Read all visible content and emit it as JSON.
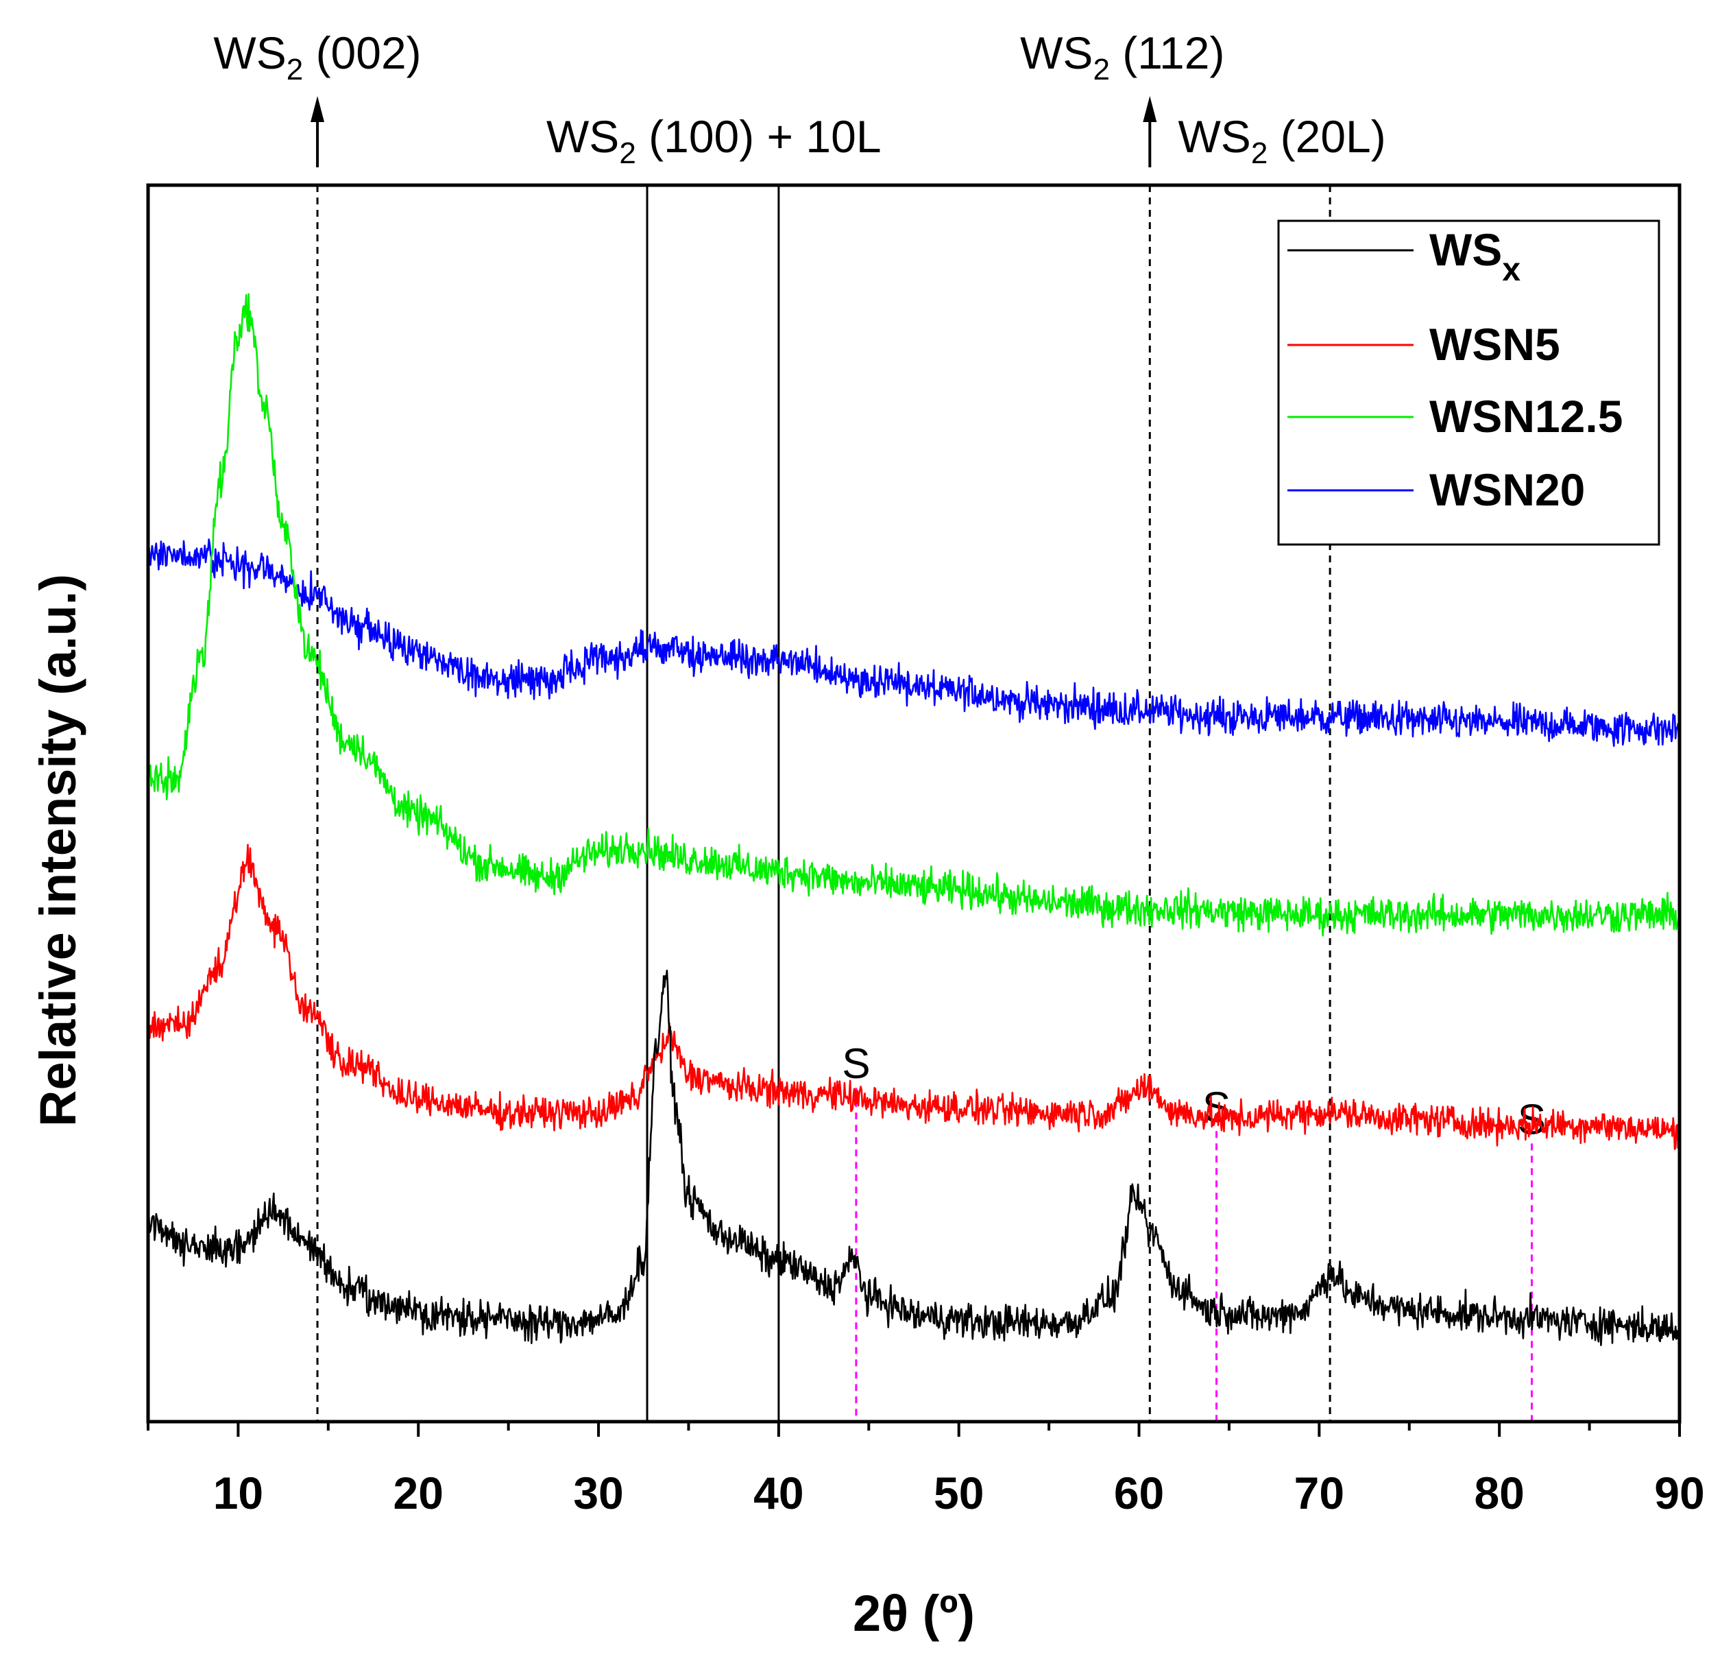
{
  "chart_data": {
    "type": "line",
    "title": "",
    "xlabel": "2θ (º)",
    "ylabel": "Relative intensity (a.u.)",
    "xlim": [
      5,
      90
    ],
    "ylim": [
      0,
      1
    ],
    "xticks": [
      10,
      20,
      30,
      40,
      50,
      60,
      70,
      80,
      90
    ],
    "yticks_shown": false,
    "legend": {
      "position": "top-right",
      "entries": [
        {
          "label": "WS",
          "subscript": "x",
          "color": "#000000"
        },
        {
          "label": "WSN5",
          "subscript": "",
          "color": "#ff0000"
        },
        {
          "label": "WSN12.5",
          "subscript": "",
          "color": "#00ee00"
        },
        {
          "label": "WSN20",
          "subscript": "",
          "color": "#0000ff"
        }
      ]
    },
    "series": [
      {
        "name": "WSx",
        "color": "#000000",
        "baseline": 0.085,
        "noise": 0.01,
        "points": [
          [
            5,
            0.16
          ],
          [
            8,
            0.14
          ],
          [
            10,
            0.14
          ],
          [
            12,
            0.17
          ],
          [
            14,
            0.14
          ],
          [
            16,
            0.11
          ],
          [
            18,
            0.095
          ],
          [
            22,
            0.085
          ],
          [
            28,
            0.08
          ],
          [
            31,
            0.085
          ],
          [
            32.5,
            0.13
          ],
          [
            33.2,
            0.3
          ],
          [
            33.7,
            0.36
          ],
          [
            34.2,
            0.26
          ],
          [
            35,
            0.18
          ],
          [
            37,
            0.15
          ],
          [
            40,
            0.13
          ],
          [
            43,
            0.11
          ],
          [
            44.2,
            0.13
          ],
          [
            45,
            0.1
          ],
          [
            48,
            0.085
          ],
          [
            52,
            0.08
          ],
          [
            56,
            0.08
          ],
          [
            58.5,
            0.1
          ],
          [
            59.8,
            0.18
          ],
          [
            60.8,
            0.15
          ],
          [
            62,
            0.11
          ],
          [
            64,
            0.09
          ],
          [
            67,
            0.085
          ],
          [
            69,
            0.09
          ],
          [
            70.7,
            0.12
          ],
          [
            72,
            0.1
          ],
          [
            75,
            0.09
          ],
          [
            80,
            0.085
          ],
          [
            85,
            0.08
          ],
          [
            90,
            0.075
          ]
        ]
      },
      {
        "name": "WSN5",
        "color": "#ff0000",
        "baseline": 0.22,
        "noise": 0.009,
        "points": [
          [
            5,
            0.32
          ],
          [
            7,
            0.32
          ],
          [
            9,
            0.37
          ],
          [
            10.5,
            0.45
          ],
          [
            12,
            0.4
          ],
          [
            14,
            0.33
          ],
          [
            16,
            0.29
          ],
          [
            20,
            0.26
          ],
          [
            25,
            0.25
          ],
          [
            30,
            0.25
          ],
          [
            32,
            0.26
          ],
          [
            33,
            0.29
          ],
          [
            34,
            0.31
          ],
          [
            35,
            0.28
          ],
          [
            38,
            0.27
          ],
          [
            42,
            0.265
          ],
          [
            48,
            0.255
          ],
          [
            55,
            0.25
          ],
          [
            58,
            0.25
          ],
          [
            60.5,
            0.27
          ],
          [
            62,
            0.25
          ],
          [
            65,
            0.245
          ],
          [
            70,
            0.25
          ],
          [
            75,
            0.245
          ],
          [
            80,
            0.24
          ],
          [
            85,
            0.24
          ],
          [
            90,
            0.235
          ]
        ]
      },
      {
        "name": "WSN12.5",
        "color": "#00ee00",
        "baseline": 0.39,
        "noise": 0.01,
        "points": [
          [
            5,
            0.52
          ],
          [
            6.5,
            0.52
          ],
          [
            8,
            0.62
          ],
          [
            9,
            0.76
          ],
          [
            10,
            0.88
          ],
          [
            10.5,
            0.9
          ],
          [
            11.5,
            0.82
          ],
          [
            12.5,
            0.72
          ],
          [
            14,
            0.62
          ],
          [
            16,
            0.55
          ],
          [
            20,
            0.49
          ],
          [
            24,
            0.45
          ],
          [
            27,
            0.44
          ],
          [
            30,
            0.46
          ],
          [
            32,
            0.465
          ],
          [
            35,
            0.455
          ],
          [
            40,
            0.445
          ],
          [
            45,
            0.435
          ],
          [
            50,
            0.43
          ],
          [
            55,
            0.42
          ],
          [
            60,
            0.415
          ],
          [
            70,
            0.41
          ],
          [
            80,
            0.41
          ],
          [
            90,
            0.41
          ]
        ]
      },
      {
        "name": "WSN20",
        "color": "#0000ff",
        "baseline": 0.5,
        "noise": 0.01,
        "points": [
          [
            5,
            0.7
          ],
          [
            8,
            0.7
          ],
          [
            11,
            0.69
          ],
          [
            14,
            0.67
          ],
          [
            17,
            0.64
          ],
          [
            20,
            0.62
          ],
          [
            24,
            0.6
          ],
          [
            27,
            0.6
          ],
          [
            30,
            0.615
          ],
          [
            33,
            0.625
          ],
          [
            36,
            0.62
          ],
          [
            40,
            0.615
          ],
          [
            45,
            0.6
          ],
          [
            50,
            0.59
          ],
          [
            55,
            0.58
          ],
          [
            60,
            0.575
          ],
          [
            65,
            0.57
          ],
          [
            70,
            0.57
          ],
          [
            80,
            0.565
          ],
          [
            90,
            0.56
          ]
        ]
      }
    ],
    "reference_lines": [
      {
        "x": 14.4,
        "style": "dashed",
        "color": "#000000"
      },
      {
        "x": 32.7,
        "style": "solid",
        "color": "#000000"
      },
      {
        "x": 40.0,
        "style": "solid",
        "color": "#000000"
      },
      {
        "x": 60.6,
        "style": "dashed",
        "color": "#000000"
      },
      {
        "x": 70.6,
        "style": "dashed",
        "color": "#000000"
      }
    ],
    "substrate_lines": [
      {
        "x": 44.3,
        "label": "S",
        "color": "#ff00ff"
      },
      {
        "x": 64.3,
        "label": "S",
        "color": "#ff00ff"
      },
      {
        "x": 81.8,
        "label": "S",
        "color": "#ff00ff"
      }
    ],
    "annotations": [
      {
        "label": "WS",
        "sub": "2",
        "rest": " (002)",
        "x": 14.4,
        "arrow": true
      },
      {
        "label": "WS",
        "sub": "2",
        "rest": " (100) + 10L",
        "x": 36.4,
        "arrow": false
      },
      {
        "label": "WS",
        "sub": "2",
        "rest": " (112)",
        "x": 60.6,
        "arrow": true
      },
      {
        "label": "WS",
        "sub": "2",
        "rest": " (20L)",
        "x": 70.6,
        "arrow": false
      }
    ]
  }
}
